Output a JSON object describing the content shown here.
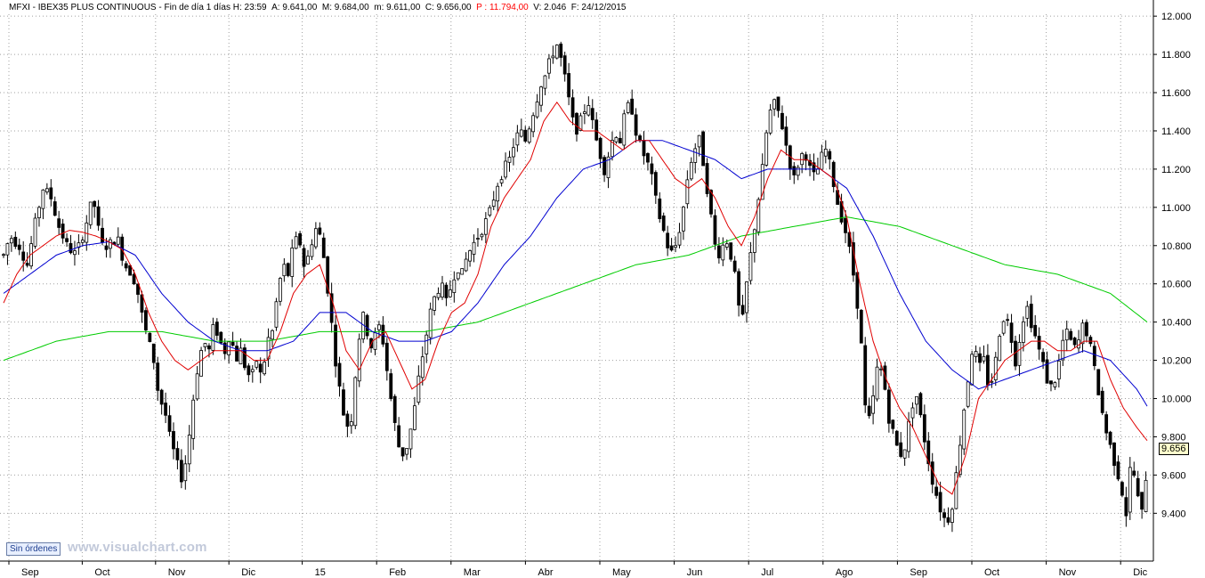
{
  "header": {
    "symbol": "MFXI - IBEX35 PLUS CONTINUOUS",
    "timeframe": "Fin de día 1 días",
    "time": "H: 23:59",
    "open": "A: 9.641,00",
    "high": "M: 9.684,00",
    "low": "m: 9.611,00",
    "close": "C: 9.656,00",
    "position": "P : 11.794,00",
    "volume": "V: 2.046",
    "date": "F: 24/12/2015"
  },
  "badge": "Sin órdenes",
  "watermark": "www.visualchart.com",
  "last_price_label": "9.656",
  "colors": {
    "candle": "#000000",
    "ma_short": "#e00000",
    "ma_medium": "#0000d0",
    "ma_long": "#00cc00",
    "grid": "#a0a0a0",
    "background": "#ffffff"
  },
  "chart_data": {
    "type": "candlestick",
    "y_ticks": [
      9400,
      9600,
      9800,
      10000,
      10200,
      10400,
      10600,
      10800,
      11000,
      11200,
      11400,
      11600,
      11800,
      12000
    ],
    "y_tick_labels": [
      "9.400",
      "9.600",
      "9.800",
      "10.000",
      "10.200",
      "10.400",
      "10.600",
      "10.800",
      "11.000",
      "11.200",
      "11.400",
      "11.600",
      "11.800",
      "12.000"
    ],
    "ylim": [
      9150,
      12010
    ],
    "grid": true,
    "x_labels": [
      "Sep",
      "Oct",
      "Nov",
      "Dic",
      "15",
      "Feb",
      "Mar",
      "Abr",
      "May",
      "Jun",
      "Jul",
      "Ago",
      "Sep",
      "Oct",
      "Nov",
      "Dic"
    ],
    "close_path": [
      [
        0,
        10750
      ],
      [
        5,
        10850
      ],
      [
        12,
        10800
      ],
      [
        18,
        10700
      ],
      [
        25,
        10950
      ],
      [
        30,
        11100
      ],
      [
        36,
        11050
      ],
      [
        42,
        10900
      ],
      [
        48,
        10800
      ],
      [
        55,
        10750
      ],
      [
        62,
        10900
      ],
      [
        68,
        11050
      ],
      [
        74,
        10800
      ],
      [
        80,
        10800
      ],
      [
        86,
        10850
      ],
      [
        92,
        10700
      ],
      [
        98,
        10650
      ],
      [
        102,
        10550
      ],
      [
        106,
        10400
      ],
      [
        110,
        10300
      ],
      [
        114,
        10200
      ],
      [
        118,
        10000
      ],
      [
        122,
        9950
      ],
      [
        126,
        9800
      ],
      [
        130,
        9700
      ],
      [
        134,
        9600
      ],
      [
        136,
        9580
      ],
      [
        140,
        9750
      ],
      [
        144,
        10000
      ],
      [
        148,
        10200
      ],
      [
        152,
        10300
      ],
      [
        156,
        10250
      ],
      [
        160,
        10400
      ],
      [
        164,
        10300
      ],
      [
        168,
        10250
      ],
      [
        172,
        10350
      ],
      [
        176,
        10200
      ],
      [
        180,
        10250
      ],
      [
        184,
        10150
      ],
      [
        188,
        10100
      ],
      [
        192,
        10200
      ],
      [
        196,
        10100
      ],
      [
        200,
        10300
      ],
      [
        204,
        10350
      ],
      [
        208,
        10550
      ],
      [
        212,
        10700
      ],
      [
        216,
        10650
      ],
      [
        220,
        10800
      ],
      [
        224,
        10850
      ],
      [
        228,
        10700
      ],
      [
        232,
        10750
      ],
      [
        236,
        10900
      ],
      [
        240,
        10850
      ],
      [
        244,
        10700
      ],
      [
        248,
        10450
      ],
      [
        252,
        10200
      ],
      [
        256,
        10000
      ],
      [
        260,
        9850
      ],
      [
        264,
        9900
      ],
      [
        268,
        10200
      ],
      [
        272,
        10450
      ],
      [
        276,
        10350
      ],
      [
        280,
        10250
      ],
      [
        284,
        10400
      ],
      [
        288,
        10300
      ],
      [
        292,
        10100
      ],
      [
        296,
        9900
      ],
      [
        300,
        9750
      ],
      [
        304,
        9700
      ],
      [
        308,
        9800
      ],
      [
        312,
        9950
      ],
      [
        316,
        10150
      ],
      [
        320,
        10300
      ],
      [
        324,
        10450
      ],
      [
        328,
        10550
      ],
      [
        332,
        10600
      ],
      [
        336,
        10500
      ],
      [
        340,
        10600
      ],
      [
        344,
        10700
      ],
      [
        348,
        10650
      ],
      [
        352,
        10750
      ],
      [
        356,
        10800
      ],
      [
        360,
        10850
      ],
      [
        364,
        10900
      ],
      [
        368,
        10950
      ],
      [
        372,
        11050
      ],
      [
        376,
        11150
      ],
      [
        380,
        11200
      ],
      [
        384,
        11250
      ],
      [
        388,
        11350
      ],
      [
        392,
        11400
      ],
      [
        396,
        11350
      ],
      [
        400,
        11450
      ],
      [
        404,
        11550
      ],
      [
        408,
        11650
      ],
      [
        412,
        11700
      ],
      [
        416,
        11800
      ],
      [
        420,
        11850
      ],
      [
        424,
        11750
      ],
      [
        428,
        11600
      ],
      [
        432,
        11450
      ],
      [
        436,
        11400
      ],
      [
        440,
        11500
      ],
      [
        444,
        11550
      ],
      [
        448,
        11400
      ],
      [
        452,
        11300
      ],
      [
        456,
        11200
      ],
      [
        460,
        11300
      ],
      [
        464,
        11400
      ],
      [
        468,
        11350
      ],
      [
        472,
        11500
      ],
      [
        476,
        11550
      ],
      [
        480,
        11400
      ],
      [
        484,
        11300
      ],
      [
        488,
        11250
      ],
      [
        492,
        11150
      ],
      [
        496,
        11000
      ],
      [
        500,
        10900
      ],
      [
        504,
        10800
      ],
      [
        508,
        10750
      ],
      [
        512,
        10850
      ],
      [
        516,
        11000
      ],
      [
        520,
        11200
      ],
      [
        524,
        11300
      ],
      [
        528,
        11350
      ],
      [
        532,
        11200
      ],
      [
        536,
        11000
      ],
      [
        540,
        10800
      ],
      [
        544,
        10750
      ],
      [
        548,
        10850
      ],
      [
        552,
        10750
      ],
      [
        556,
        10600
      ],
      [
        560,
        10350
      ],
      [
        564,
        10600
      ],
      [
        568,
        10800
      ],
      [
        572,
        11000
      ],
      [
        576,
        11200
      ],
      [
        580,
        11450
      ],
      [
        584,
        11550
      ],
      [
        588,
        11500
      ],
      [
        592,
        11400
      ],
      [
        596,
        11250
      ],
      [
        600,
        11150
      ],
      [
        604,
        11250
      ],
      [
        608,
        11300
      ],
      [
        612,
        11200
      ],
      [
        616,
        11150
      ],
      [
        620,
        11250
      ],
      [
        624,
        11300
      ],
      [
        628,
        11200
      ],
      [
        632,
        11050
      ],
      [
        636,
        10950
      ],
      [
        640,
        10850
      ],
      [
        644,
        10700
      ],
      [
        648,
        10500
      ],
      [
        652,
        10200
      ],
      [
        654,
        9950
      ],
      [
        656,
        9850
      ],
      [
        660,
        10000
      ],
      [
        664,
        10200
      ],
      [
        668,
        10100
      ],
      [
        672,
        9900
      ],
      [
        676,
        9800
      ],
      [
        680,
        9700
      ],
      [
        684,
        9750
      ],
      [
        688,
        9900
      ],
      [
        692,
        10050
      ],
      [
        696,
        9900
      ],
      [
        700,
        9750
      ],
      [
        704,
        9600
      ],
      [
        708,
        9500
      ],
      [
        712,
        9400
      ],
      [
        716,
        9350
      ],
      [
        720,
        9450
      ],
      [
        724,
        9650
      ],
      [
        728,
        9900
      ],
      [
        732,
        10100
      ],
      [
        736,
        10300
      ],
      [
        740,
        10150
      ],
      [
        744,
        10200
      ],
      [
        748,
        10050
      ],
      [
        752,
        10150
      ],
      [
        756,
        10350
      ],
      [
        760,
        10450
      ],
      [
        764,
        10350
      ],
      [
        768,
        10200
      ],
      [
        772,
        10350
      ],
      [
        776,
        10500
      ],
      [
        780,
        10400
      ],
      [
        784,
        10300
      ],
      [
        788,
        10200
      ],
      [
        792,
        10100
      ],
      [
        796,
        10050
      ],
      [
        800,
        10150
      ],
      [
        804,
        10300
      ],
      [
        808,
        10350
      ],
      [
        812,
        10250
      ],
      [
        816,
        10300
      ],
      [
        820,
        10400
      ],
      [
        824,
        10300
      ],
      [
        828,
        10150
      ],
      [
        832,
        10000
      ],
      [
        836,
        9850
      ],
      [
        840,
        9750
      ],
      [
        844,
        9650
      ],
      [
        848,
        9550
      ],
      [
        852,
        9400
      ],
      [
        856,
        9700
      ],
      [
        860,
        9500
      ],
      [
        864,
        9400
      ],
      [
        868,
        9656
      ]
    ],
    "ma_short_path": [
      [
        0,
        10500
      ],
      [
        10,
        10650
      ],
      [
        20,
        10750
      ],
      [
        30,
        10800
      ],
      [
        40,
        10850
      ],
      [
        50,
        10880
      ],
      [
        60,
        10870
      ],
      [
        70,
        10850
      ],
      [
        80,
        10820
      ],
      [
        90,
        10780
      ],
      [
        100,
        10650
      ],
      [
        110,
        10450
      ],
      [
        120,
        10300
      ],
      [
        130,
        10200
      ],
      [
        140,
        10150
      ],
      [
        150,
        10200
      ],
      [
        160,
        10250
      ],
      [
        170,
        10250
      ],
      [
        180,
        10250
      ],
      [
        190,
        10200
      ],
      [
        200,
        10200
      ],
      [
        210,
        10350
      ],
      [
        220,
        10550
      ],
      [
        230,
        10650
      ],
      [
        240,
        10700
      ],
      [
        250,
        10500
      ],
      [
        260,
        10250
      ],
      [
        270,
        10150
      ],
      [
        280,
        10300
      ],
      [
        290,
        10350
      ],
      [
        300,
        10200
      ],
      [
        310,
        10050
      ],
      [
        320,
        10100
      ],
      [
        330,
        10300
      ],
      [
        340,
        10450
      ],
      [
        350,
        10500
      ],
      [
        360,
        10650
      ],
      [
        370,
        10900
      ],
      [
        380,
        11050
      ],
      [
        390,
        11150
      ],
      [
        400,
        11250
      ],
      [
        410,
        11450
      ],
      [
        420,
        11550
      ],
      [
        430,
        11450
      ],
      [
        440,
        11400
      ],
      [
        450,
        11400
      ],
      [
        460,
        11350
      ],
      [
        470,
        11300
      ],
      [
        480,
        11350
      ],
      [
        490,
        11350
      ],
      [
        500,
        11250
      ],
      [
        510,
        11150
      ],
      [
        520,
        11100
      ],
      [
        530,
        11150
      ],
      [
        540,
        11050
      ],
      [
        550,
        10900
      ],
      [
        560,
        10800
      ],
      [
        570,
        10950
      ],
      [
        580,
        11150
      ],
      [
        590,
        11300
      ],
      [
        600,
        11250
      ],
      [
        610,
        11250
      ],
      [
        620,
        11200
      ],
      [
        630,
        11150
      ],
      [
        640,
        10950
      ],
      [
        650,
        10600
      ],
      [
        660,
        10300
      ],
      [
        670,
        10100
      ],
      [
        680,
        9950
      ],
      [
        690,
        9850
      ],
      [
        700,
        9700
      ],
      [
        710,
        9550
      ],
      [
        720,
        9500
      ],
      [
        730,
        9700
      ],
      [
        740,
        10000
      ],
      [
        750,
        10100
      ],
      [
        760,
        10200
      ],
      [
        770,
        10250
      ],
      [
        780,
        10300
      ],
      [
        790,
        10300
      ],
      [
        800,
        10250
      ],
      [
        810,
        10250
      ],
      [
        820,
        10300
      ],
      [
        830,
        10300
      ],
      [
        840,
        10100
      ],
      [
        850,
        9950
      ],
      [
        860,
        9850
      ],
      [
        868,
        9780
      ]
    ],
    "ma_medium_path": [
      [
        0,
        10550
      ],
      [
        20,
        10650
      ],
      [
        40,
        10750
      ],
      [
        60,
        10800
      ],
      [
        80,
        10820
      ],
      [
        100,
        10750
      ],
      [
        120,
        10550
      ],
      [
        140,
        10400
      ],
      [
        160,
        10300
      ],
      [
        180,
        10250
      ],
      [
        200,
        10250
      ],
      [
        220,
        10300
      ],
      [
        240,
        10450
      ],
      [
        260,
        10450
      ],
      [
        280,
        10350
      ],
      [
        300,
        10300
      ],
      [
        320,
        10300
      ],
      [
        340,
        10350
      ],
      [
        360,
        10500
      ],
      [
        380,
        10700
      ],
      [
        400,
        10850
      ],
      [
        420,
        11050
      ],
      [
        440,
        11200
      ],
      [
        460,
        11250
      ],
      [
        480,
        11350
      ],
      [
        500,
        11350
      ],
      [
        520,
        11300
      ],
      [
        540,
        11250
      ],
      [
        560,
        11150
      ],
      [
        580,
        11200
      ],
      [
        600,
        11200
      ],
      [
        620,
        11200
      ],
      [
        640,
        11100
      ],
      [
        660,
        10850
      ],
      [
        680,
        10550
      ],
      [
        700,
        10300
      ],
      [
        720,
        10150
      ],
      [
        740,
        10050
      ],
      [
        760,
        10100
      ],
      [
        780,
        10150
      ],
      [
        800,
        10200
      ],
      [
        820,
        10250
      ],
      [
        840,
        10200
      ],
      [
        860,
        10050
      ],
      [
        868,
        9960
      ]
    ],
    "ma_long_path": [
      [
        0,
        10200
      ],
      [
        40,
        10300
      ],
      [
        80,
        10350
      ],
      [
        120,
        10350
      ],
      [
        160,
        10300
      ],
      [
        200,
        10300
      ],
      [
        240,
        10350
      ],
      [
        280,
        10350
      ],
      [
        320,
        10350
      ],
      [
        360,
        10400
      ],
      [
        400,
        10500
      ],
      [
        440,
        10600
      ],
      [
        480,
        10700
      ],
      [
        520,
        10750
      ],
      [
        560,
        10850
      ],
      [
        600,
        10900
      ],
      [
        640,
        10950
      ],
      [
        680,
        10900
      ],
      [
        720,
        10800
      ],
      [
        760,
        10700
      ],
      [
        800,
        10650
      ],
      [
        840,
        10550
      ],
      [
        868,
        10400
      ]
    ]
  }
}
